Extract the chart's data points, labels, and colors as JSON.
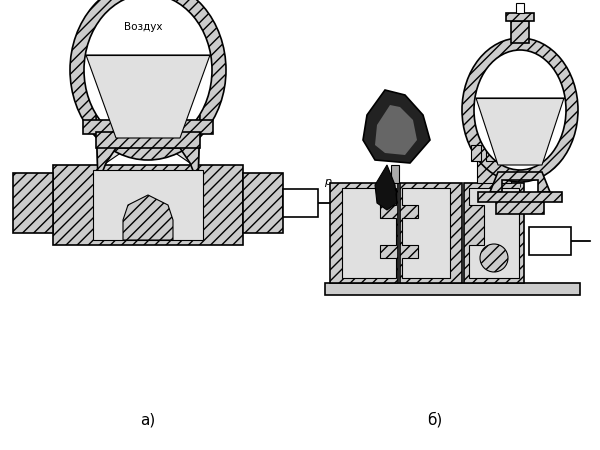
{
  "bg_color": "#ffffff",
  "label_a": "а)",
  "label_b": "б)",
  "label_vozduh": "Воздух",
  "label_p": "р",
  "fig_width": 6.0,
  "fig_height": 4.5,
  "dpi": 100,
  "hatch_fc": "#cccccc",
  "sand_fc": "#e0e0e0",
  "inner_fc": "#f0f0f0"
}
